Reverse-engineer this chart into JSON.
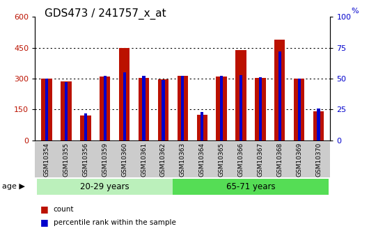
{
  "title": "GDS473 / 241757_x_at",
  "samples": [
    "GSM10354",
    "GSM10355",
    "GSM10356",
    "GSM10359",
    "GSM10360",
    "GSM10361",
    "GSM10362",
    "GSM10363",
    "GSM10364",
    "GSM10365",
    "GSM10366",
    "GSM10367",
    "GSM10368",
    "GSM10369",
    "GSM10370"
  ],
  "count": [
    300,
    285,
    120,
    310,
    450,
    305,
    295,
    315,
    125,
    310,
    440,
    305,
    490,
    300,
    140
  ],
  "percentile": [
    50,
    47,
    22,
    52,
    55,
    52,
    49,
    52,
    23,
    52,
    53,
    51,
    72,
    50,
    26
  ],
  "groups": [
    {
      "label": "20-29 years",
      "start": 0,
      "end": 7
    },
    {
      "label": "65-71 years",
      "start": 7,
      "end": 15
    }
  ],
  "group_color_light": "#bbf0bb",
  "group_color_dark": "#55dd55",
  "bar_color_red": "#bb1100",
  "bar_color_blue": "#0000cc",
  "ylim_left": [
    0,
    600
  ],
  "ylim_right": [
    0,
    100
  ],
  "yticks_left": [
    0,
    150,
    300,
    450,
    600
  ],
  "yticks_right": [
    0,
    25,
    50,
    75,
    100
  ],
  "grid_lines": [
    150,
    300,
    450
  ],
  "title_fontsize": 11
}
